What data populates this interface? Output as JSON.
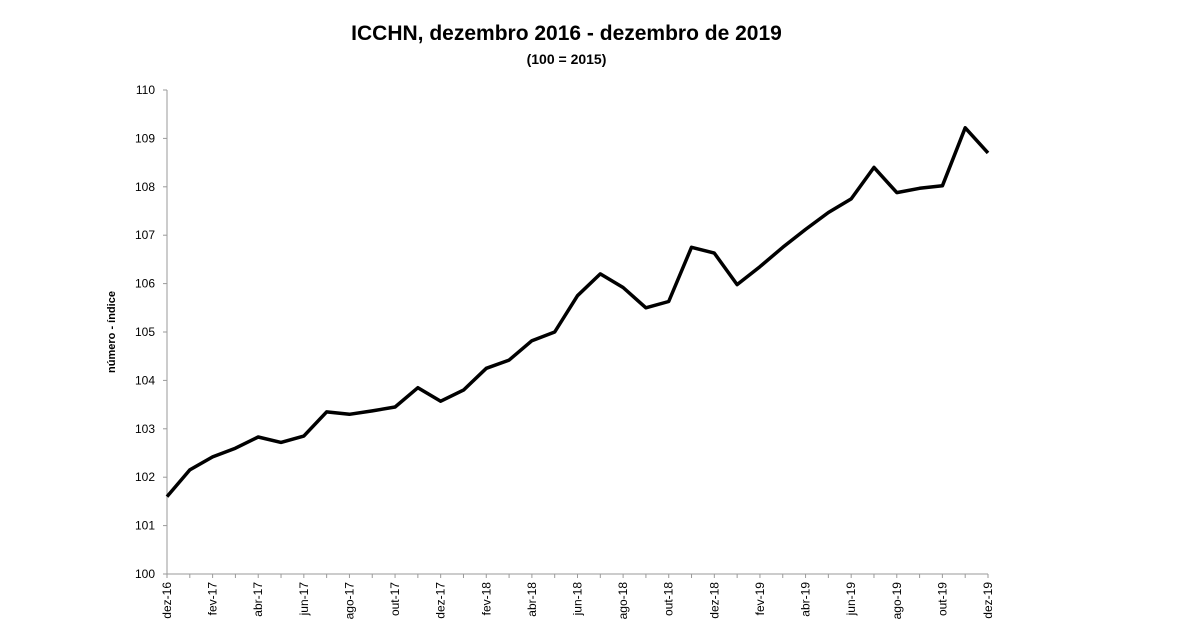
{
  "chart_data": {
    "type": "line",
    "title": "ICCHN, dezembro 2016 - dezembro de 2019",
    "subtitle": "(100 = 2015)",
    "xlabel": "",
    "ylabel": "número - índice",
    "ylim": [
      100,
      110
    ],
    "yticks": [
      "100",
      "101",
      "102",
      "103",
      "104",
      "105",
      "106",
      "107",
      "108",
      "109",
      "110"
    ],
    "grid": false,
    "x_tick_labels": [
      "dez-16",
      "fev-17",
      "abr-17",
      "jun-17",
      "ago-17",
      "out-17",
      "dez-17",
      "fev-18",
      "abr-18",
      "jun-18",
      "ago-18",
      "out-18",
      "dez-18",
      "fev-19",
      "abr-19",
      "jun-19",
      "ago-19",
      "out-19",
      "dez-19"
    ],
    "categories": [
      "dez-16",
      "jan-17",
      "fev-17",
      "mar-17",
      "abr-17",
      "mai-17",
      "jun-17",
      "jul-17",
      "ago-17",
      "set-17",
      "out-17",
      "nov-17",
      "dez-17",
      "jan-18",
      "fev-18",
      "mar-18",
      "abr-18",
      "mai-18",
      "jun-18",
      "jul-18",
      "ago-18",
      "set-18",
      "out-18",
      "nov-18",
      "dez-18",
      "jan-19",
      "fev-19",
      "mar-19",
      "abr-19",
      "mai-19",
      "jun-19",
      "jul-19",
      "ago-19",
      "set-19",
      "out-19",
      "nov-19",
      "dez-19"
    ],
    "series": [
      {
        "name": "ICCHN",
        "color": "#000000",
        "values": [
          101.6,
          102.15,
          102.42,
          102.6,
          102.83,
          102.72,
          102.85,
          103.35,
          103.3,
          103.37,
          103.45,
          103.85,
          103.57,
          103.8,
          104.25,
          104.42,
          104.82,
          105.0,
          105.75,
          106.2,
          105.92,
          105.5,
          105.63,
          106.75,
          106.63,
          105.98,
          106.35,
          106.75,
          107.12,
          107.47,
          107.75,
          108.4,
          107.88,
          107.97,
          108.02,
          109.22,
          108.7
        ]
      }
    ]
  }
}
